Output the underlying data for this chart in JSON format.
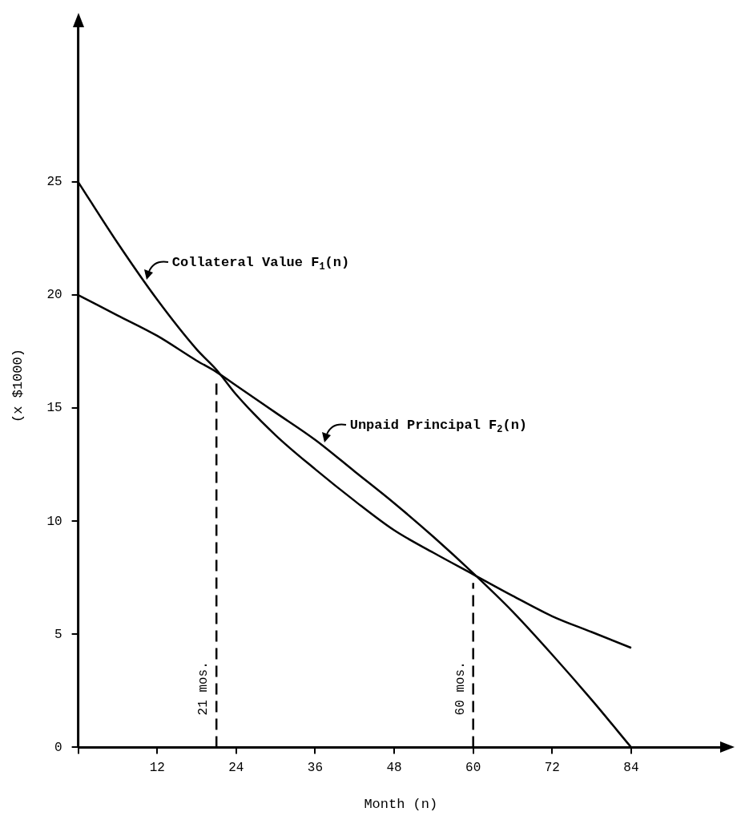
{
  "chart_data": {
    "type": "line",
    "xlabel": "Month (n)",
    "ylabel": "(x $1000)",
    "x": [
      0,
      6,
      12,
      18,
      21,
      24,
      30,
      36,
      42,
      48,
      54,
      60,
      66,
      72,
      78,
      84
    ],
    "series": [
      {
        "color": "#000000",
        "values": [
          25,
          22.3,
          19.8,
          17.6,
          16.7,
          15.6,
          13.8,
          12.3,
          10.9,
          9.6,
          8.6,
          7.65,
          6.7,
          5.8,
          5.1,
          4.4
        ]
      },
      {
        "color": "#000000",
        "values": [
          20,
          19.1,
          18.2,
          17.1,
          16.6,
          16.0,
          14.8,
          13.6,
          12.2,
          10.8,
          9.3,
          7.7,
          6.0,
          4.1,
          2.1,
          0
        ]
      }
    ],
    "xlim": [
      0,
      98
    ],
    "xticks": [
      {
        "value": 0,
        "label": null
      },
      12,
      24,
      36,
      48,
      60,
      72,
      84
    ],
    "ylim": [
      0,
      32
    ],
    "yticks": [
      0,
      5,
      10,
      15,
      20,
      25
    ],
    "grid": false,
    "legend": false,
    "marker": "none",
    "line_style": "solid",
    "ref_lines": [
      {
        "axis": "x",
        "value": 21,
        "label": "21 mos.",
        "line_style": "dashed"
      },
      {
        "axis": "x",
        "value": 60,
        "label": "60 mos.",
        "line_style": "dashed"
      }
    ],
    "annotations": [
      {
        "text": "Collateral Value F$_{1}$(n)",
        "x": 10,
        "y": 20.6
      },
      {
        "text": "Unpaid Principal F$_{2}$(n)",
        "x": 37,
        "y": 13.4
      }
    ]
  }
}
